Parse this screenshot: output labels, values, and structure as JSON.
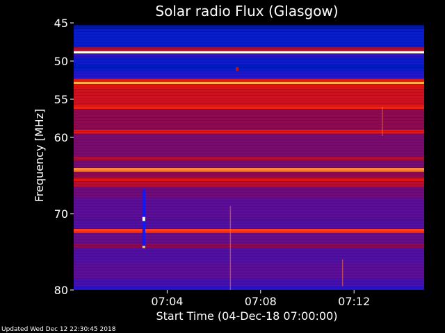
{
  "chart_data": {
    "type": "heatmap",
    "title": "Solar radio Flux (Glasgow)",
    "xlabel": "Start Time (04-Dec-18 07:00:00)",
    "ylabel": "Frequency [MHz]",
    "x_range_minutes": [
      0,
      15
    ],
    "x_tick_labels": [
      "07:04",
      "07:08",
      "07:12"
    ],
    "x_tick_values_min": [
      4,
      8,
      12
    ],
    "y_range_mhz": [
      45,
      80
    ],
    "y_inverted": true,
    "y_tick_values": [
      45,
      50,
      55,
      60,
      70,
      80
    ],
    "colormap": "blue-red-white (low to high intensity)",
    "bands": [
      {
        "f0": 45.0,
        "f1": 45.3,
        "level": 0.0
      },
      {
        "f0": 45.3,
        "f1": 45.8,
        "level": 0.12
      },
      {
        "f0": 45.8,
        "f1": 48.2,
        "level": 0.18
      },
      {
        "f0": 48.2,
        "f1": 48.7,
        "level": 0.55
      },
      {
        "f0": 48.7,
        "f1": 49.0,
        "level": 1.0
      },
      {
        "f0": 49.0,
        "f1": 49.5,
        "level": 0.32
      },
      {
        "f0": 49.5,
        "f1": 50.5,
        "level": 0.2
      },
      {
        "f0": 50.5,
        "f1": 51.0,
        "level": 0.14
      },
      {
        "f0": 51.0,
        "f1": 51.5,
        "level": 0.22
      },
      {
        "f0": 51.5,
        "f1": 52.3,
        "level": 0.28
      },
      {
        "f0": 52.3,
        "f1": 52.7,
        "level": 0.62
      },
      {
        "f0": 52.7,
        "f1": 53.0,
        "level": 0.85
      },
      {
        "f0": 53.0,
        "f1": 53.7,
        "level": 0.6
      },
      {
        "f0": 53.7,
        "f1": 55.8,
        "level": 0.58
      },
      {
        "f0": 55.8,
        "f1": 56.3,
        "level": 0.66
      },
      {
        "f0": 56.3,
        "f1": 59.0,
        "level": 0.5
      },
      {
        "f0": 59.0,
        "f1": 59.5,
        "level": 0.62
      },
      {
        "f0": 59.5,
        "f1": 62.5,
        "level": 0.46
      },
      {
        "f0": 62.5,
        "f1": 63.0,
        "level": 0.54
      },
      {
        "f0": 63.0,
        "f1": 64.0,
        "level": 0.45
      },
      {
        "f0": 64.0,
        "f1": 64.5,
        "level": 0.82
      },
      {
        "f0": 64.5,
        "f1": 65.3,
        "level": 0.5
      },
      {
        "f0": 65.3,
        "f1": 65.8,
        "level": 0.6
      },
      {
        "f0": 65.8,
        "f1": 66.5,
        "level": 0.55
      },
      {
        "f0": 66.5,
        "f1": 68.0,
        "level": 0.44
      },
      {
        "f0": 68.0,
        "f1": 70.8,
        "level": 0.4
      },
      {
        "f0": 70.8,
        "f1": 72.0,
        "level": 0.38
      },
      {
        "f0": 72.0,
        "f1": 72.5,
        "level": 0.75
      },
      {
        "f0": 72.5,
        "f1": 74.0,
        "level": 0.42
      },
      {
        "f0": 74.0,
        "f1": 74.5,
        "level": 0.5
      },
      {
        "f0": 74.5,
        "f1": 76.5,
        "level": 0.38
      },
      {
        "f0": 76.5,
        "f1": 78.5,
        "level": 0.4
      },
      {
        "f0": 78.5,
        "f1": 79.5,
        "level": 0.36
      },
      {
        "f0": 79.5,
        "f1": 80.0,
        "level": 0.3
      }
    ],
    "bursts": [
      {
        "t_min": 3.0,
        "f0": 66.8,
        "f1": 74.5,
        "kind": "blue-column-with-bright-core",
        "core_f": 70.7
      },
      {
        "t_min": 7.0,
        "f0": 50.8,
        "f1": 51.3,
        "kind": "dot"
      },
      {
        "t_min": 6.7,
        "f0": 69.0,
        "f1": 80.0,
        "kind": "faint-red-column"
      },
      {
        "t_min": 13.2,
        "f0": 56.0,
        "f1": 59.8,
        "kind": "faint-red-column"
      },
      {
        "t_min": 11.5,
        "f0": 76.0,
        "f1": 79.5,
        "kind": "faint-red-column"
      }
    ]
  },
  "footer": {
    "updated": "Updated Wed Dec 12 22:30:45 2018"
  }
}
